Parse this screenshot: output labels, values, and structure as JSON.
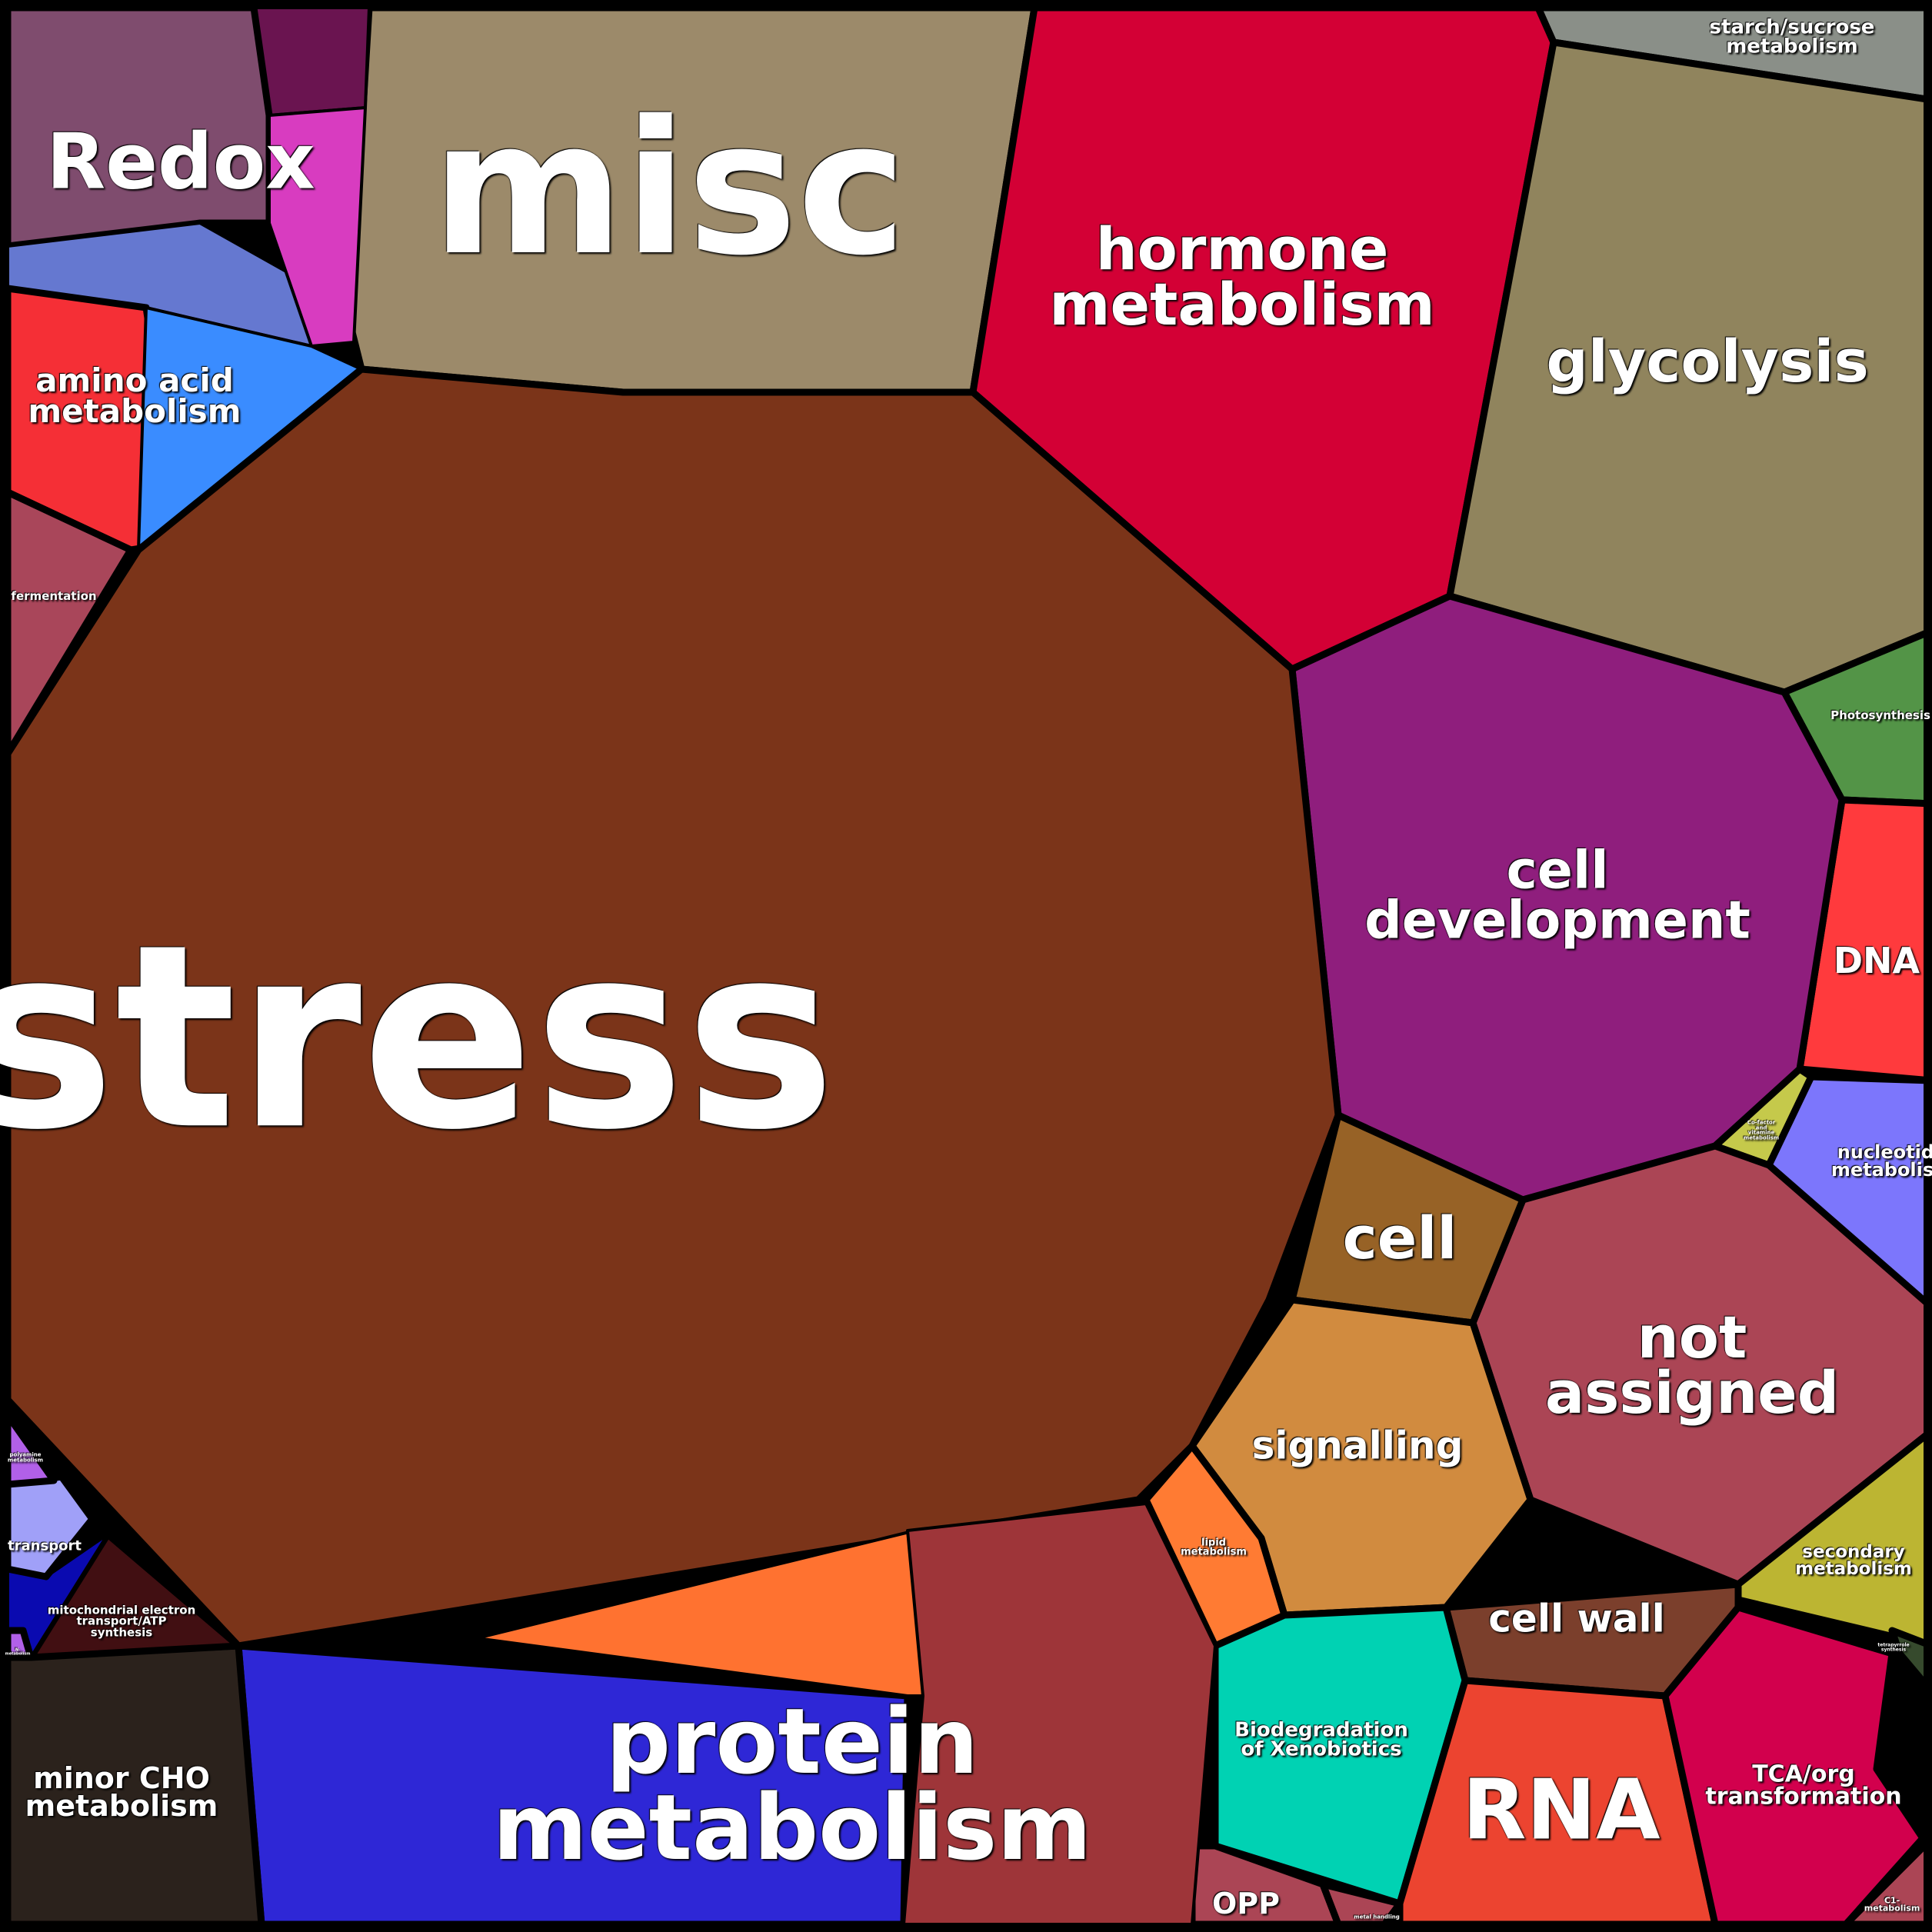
{
  "categories": [
    {
      "key": "stress",
      "label": "stress",
      "color": "#7b3419"
    },
    {
      "key": "misc",
      "label": "misc",
      "color": "#9c8a6a"
    },
    {
      "key": "redox",
      "label": "Redox",
      "color": "#7f4c6e"
    },
    {
      "key": "amino",
      "label": "amino acid\nmetabolism",
      "color": "#f52f36"
    },
    {
      "key": "fermentation",
      "label": "fermentation",
      "color": "#a9465a"
    },
    {
      "key": "hormone",
      "label": "hormone\nmetabolism",
      "color": "#d30035"
    },
    {
      "key": "glycolysis",
      "label": "glycolysis",
      "color": "#90845d"
    },
    {
      "key": "starch",
      "label": "starch/sucrose\nmetabolism",
      "color": "#8a8f88"
    },
    {
      "key": "photosynthesis",
      "label": "Photosynthesis",
      "color": "#539447"
    },
    {
      "key": "dna",
      "label": "DNA",
      "color": "#ff3a3d"
    },
    {
      "key": "celldev",
      "label": "cell\ndevelopment",
      "color": "#8f1e7d"
    },
    {
      "key": "cofactor",
      "label": "Co-factor\nand\nvitamine\nmetabolism",
      "color": "#c5c94b"
    },
    {
      "key": "nucleotide",
      "label": "nucleotide\nmetabolism",
      "color": "#7c76fc"
    },
    {
      "key": "notassigned",
      "label": "not\nassigned",
      "color": "#ab4555"
    },
    {
      "key": "secondary",
      "label": "secondary\nmetabolism",
      "color": "#bcb532"
    },
    {
      "key": "cell",
      "label": "cell",
      "color": "#976226"
    },
    {
      "key": "signalling",
      "label": "signalling",
      "color": "#d18b3f"
    },
    {
      "key": "lipid",
      "label": "lipid\nmetabolism",
      "color": "#ff7b33"
    },
    {
      "key": "cellwall",
      "label": "cell wall",
      "color": "#7b3f2c"
    },
    {
      "key": "biodeg",
      "label": "Biodegradation\nof Xenobiotics",
      "color": "#00d2b3"
    },
    {
      "key": "opp",
      "label": "OPP",
      "color": "#ab4555"
    },
    {
      "key": "metal",
      "label": "metal handling",
      "color": "#ab4555"
    },
    {
      "key": "rna",
      "label": "RNA",
      "color": "#ec4430"
    },
    {
      "key": "tca",
      "label": "TCA/org\ntransformation",
      "color": "#d2004d"
    },
    {
      "key": "tetrapyrrole",
      "label": "tetrapyrrole\nsynthesis",
      "color": "#364a2d"
    },
    {
      "key": "c1",
      "label": "C1-\nmetabolism",
      "color": "#ab4555"
    },
    {
      "key": "protein",
      "label": "protein\nmetabolism",
      "color": "#2e27d6"
    },
    {
      "key": "minorcho",
      "label": "minor CHO\nmetabolism",
      "color": "#2b221c"
    },
    {
      "key": "mito",
      "label": "mitochondrial electron\ntransport/ATP\nsynthesis",
      "color": "#410f12"
    },
    {
      "key": "transport",
      "label": "transport",
      "color": "#a0a0f8"
    },
    {
      "key": "polyamine",
      "label": "polyamine\nmetabolism",
      "color": "#b160e8"
    },
    {
      "key": "nmetab",
      "label": "N-\nmetabolism",
      "color": "#b160e8"
    }
  ],
  "sub_colors": {
    "redox_blue": "#6578d0",
    "redox_magenta": "#d83cc0",
    "amino_blue": "#3a8cff",
    "protein_orange": "#ff7230",
    "protein_red": "#9e3539",
    "transport_blue": "#0a0ab0",
    "misc_dark": "#6a1450"
  }
}
